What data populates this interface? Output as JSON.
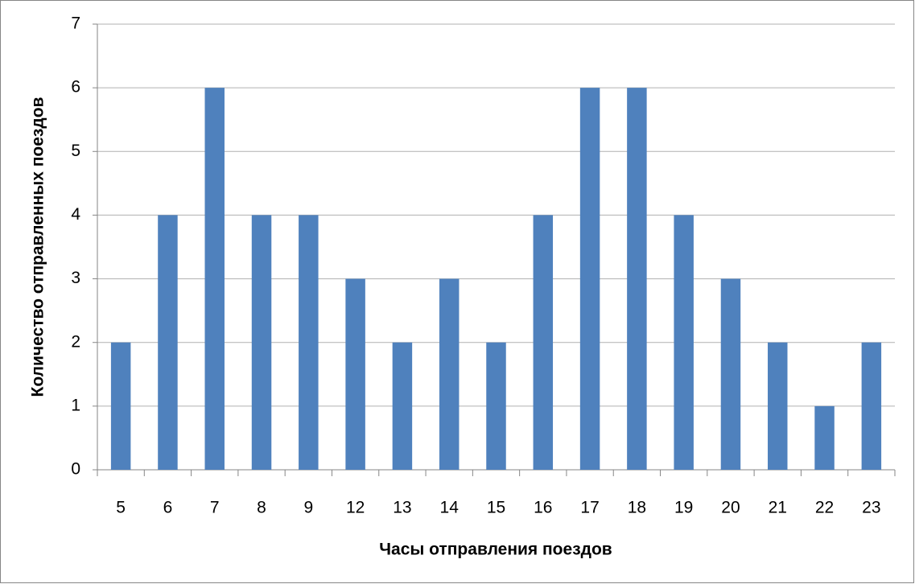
{
  "chart_data": {
    "type": "bar",
    "x_label": "Часы отправления поездов",
    "y_label": "Количество отправленных поездов",
    "categories": [
      "5",
      "6",
      "7",
      "8",
      "9",
      "12",
      "13",
      "14",
      "15",
      "16",
      "17",
      "18",
      "19",
      "20",
      "21",
      "22",
      "23"
    ],
    "values": [
      2,
      4,
      6,
      4,
      4,
      3,
      2,
      3,
      2,
      4,
      6,
      6,
      4,
      3,
      2,
      1,
      2
    ],
    "color": "#4f81bd",
    "ylim": [
      0,
      7
    ],
    "yticks": [
      0,
      1,
      2,
      3,
      4,
      5,
      6,
      7
    ],
    "grid": true
  }
}
